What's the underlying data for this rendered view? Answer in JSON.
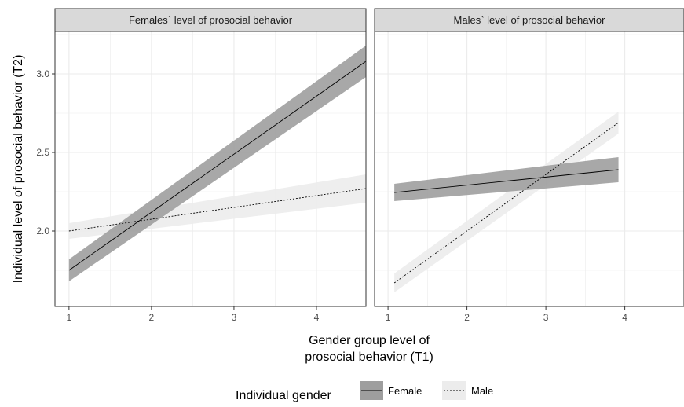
{
  "chart_data": {
    "type": "line",
    "panels": [
      {
        "strip": "Females` level of prosocial behavior",
        "xlim": [
          0.83,
          4.6
        ],
        "series": [
          {
            "name": "Female",
            "x": [
              1,
              4.6
            ],
            "y": [
              1.75,
              3.08
            ],
            "band_lower": [
              1.68,
              2.98
            ],
            "band_upper": [
              1.82,
              3.18
            ]
          },
          {
            "name": "Male",
            "x": [
              1,
              4.6
            ],
            "y": [
              2.0,
              2.27
            ],
            "band_lower": [
              1.95,
              2.18
            ],
            "band_upper": [
              2.05,
              2.36
            ]
          }
        ]
      },
      {
        "strip": "Males` level of prosocial behavior",
        "xlim": [
          0.83,
          4.75
        ],
        "series": [
          {
            "name": "Female",
            "x": [
              1.08,
              3.92
            ],
            "y": [
              2.245,
              2.39
            ],
            "band_lower": [
              2.19,
              2.31
            ],
            "band_upper": [
              2.3,
              2.47
            ]
          },
          {
            "name": "Male",
            "x": [
              1.08,
              3.92
            ],
            "y": [
              1.67,
              2.69
            ],
            "band_lower": [
              1.61,
              2.62
            ],
            "band_upper": [
              1.73,
              2.76
            ]
          }
        ]
      }
    ],
    "x_ticks": [
      1,
      2,
      3,
      4
    ],
    "y_ticks": [
      2.0,
      2.5,
      3.0
    ],
    "y_tick_labels": [
      "2.0",
      "2.5",
      "3.0"
    ],
    "ylim": [
      1.52,
      3.27
    ],
    "xlabel": "Gender group level of prosocial behavior (T1)",
    "xlabel_lines": [
      "Gender group level of",
      "prosocial behavior (T1)"
    ],
    "ylabel": "Individual level of prosocial behavior (T2)",
    "grid": true,
    "legend": {
      "position": "bottom",
      "title": "Individual gender",
      "entries": [
        {
          "label": "Female",
          "linestyle": "solid"
        },
        {
          "label": "Male",
          "linestyle": "dotted"
        }
      ]
    },
    "colors": {
      "female_band": "#9e9e9e",
      "male_band": "#ececec",
      "strip_bg": "#d9d9d9",
      "grid": "#ebebeb",
      "line": "#000000"
    }
  }
}
